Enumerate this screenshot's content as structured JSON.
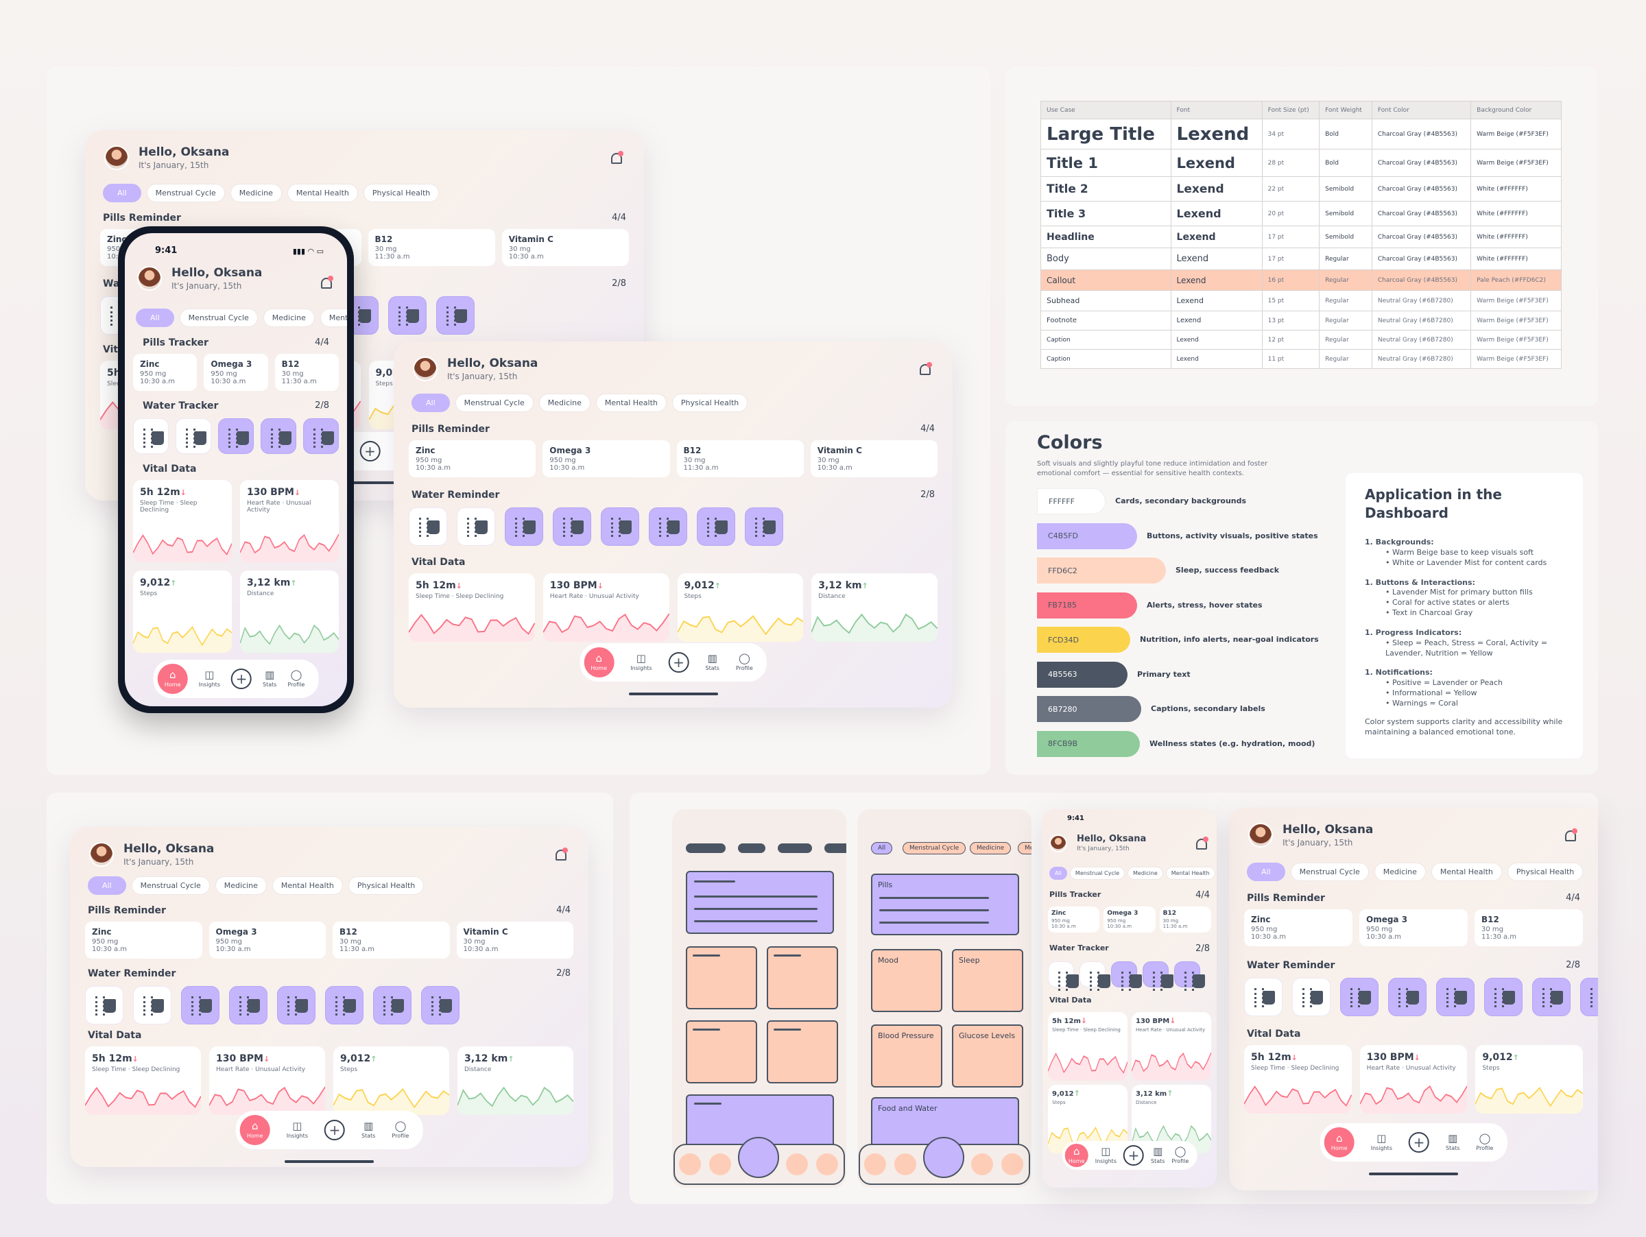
{
  "greeting": "Hello, Oksana",
  "date": "It's January, 15th",
  "chips": [
    "All",
    "Menstrual Cycle",
    "Medicine",
    "Mental Health",
    "Physical Health"
  ],
  "phone_chip_partial": "Me",
  "sections": {
    "pills": "Pills Reminder",
    "pills_tracker": "Pills Tracker",
    "pills_count": "4/4",
    "water": "Water Reminder",
    "water_tracker": "Water Tracker",
    "water_count": "2/8",
    "vital": "Vital Data"
  },
  "pills": [
    {
      "name": "Zinc",
      "dose": "950 mg",
      "time": "10:30 a.m"
    },
    {
      "name": "Omega 3",
      "dose": "950 mg",
      "time": "10:30 a.m"
    },
    {
      "name": "B12",
      "dose": "30 mg",
      "time": "11:30 a.m"
    },
    {
      "name": "Vitamin C",
      "dose": "30 mg",
      "time": "10:30 a.m"
    }
  ],
  "water": {
    "filled": 2,
    "total": 8
  },
  "vitals": [
    {
      "value": "5h 12m",
      "trend": "↓",
      "label": "Sleep Time · Sleep Declining",
      "label_a": "Sleep Time",
      "label_b": "Sleep Declining",
      "color": "#FB7185"
    },
    {
      "value": "130 BPM",
      "trend": "↓",
      "label": "Heart Rate · Unusual Activity",
      "label_a": "Heart Rate",
      "label_b": "Unusual Activity",
      "color": "#FB7185"
    },
    {
      "value": "9,012",
      "trend": "↑",
      "label": "Steps",
      "color": "#FCD34D"
    },
    {
      "value": "3,12 km",
      "trend": "↑",
      "label": "Distance",
      "color": "#8FCB9B"
    }
  ],
  "nav": [
    "Home",
    "Insights",
    "Stats",
    "Profile"
  ],
  "phone": {
    "time": "9:41",
    "status": "▮▮▮ ◠ ▭"
  },
  "typography": {
    "headers": [
      "Use Case",
      "Font",
      "Font Size (pt)",
      "Font Weight",
      "Font Color",
      "Background Color"
    ],
    "rows": [
      [
        "Large Title",
        "Lexend",
        "34 pt",
        "Bold",
        "Charcoal Gray (#4B5563)",
        "Warm Beige (#F5F3EF)"
      ],
      [
        "Title 1",
        "Lexend",
        "28 pt",
        "Bold",
        "Charcoal Gray (#4B5563)",
        "Warm Beige (#F5F3EF)"
      ],
      [
        "Title 2",
        "Lexend",
        "22 pt",
        "Semibold",
        "Charcoal Gray (#4B5563)",
        "White (#FFFFFF)"
      ],
      [
        "Title 3",
        "Lexend",
        "20 pt",
        "Semibold",
        "Charcoal Gray (#4B5563)",
        "White (#FFFFFF)"
      ],
      [
        "Headline",
        "Lexend",
        "17 pt",
        "Semibold",
        "Charcoal Gray (#4B5563)",
        "White (#FFFFFF)"
      ],
      [
        "Body",
        "Lexend",
        "17 pt",
        "Regular",
        "Charcoal Gray (#4B5563)",
        "White (#FFFFFF)"
      ],
      [
        "Callout",
        "Lexend",
        "16 pt",
        "Regular",
        "Charcoal Gray (#4B5563)",
        "Pale Peach (#FFD6C2)"
      ],
      [
        "Subhead",
        "Lexend",
        "15 pt",
        "Regular",
        "Neutral Gray (#6B7280)",
        "Warm Beige (#F5F3EF)"
      ],
      [
        "Footnote",
        "Lexend",
        "13 pt",
        "Regular",
        "Neutral Gray (#6B7280)",
        "Warm Beige (#F5F3EF)"
      ],
      [
        "Caption",
        "Lexend",
        "12 pt",
        "Regular",
        "Neutral Gray (#6B7280)",
        "Warm Beige (#F5F3EF)"
      ],
      [
        "Caption",
        "Lexend",
        "11 pt",
        "Regular",
        "Neutral Gray (#6B7280)",
        "Warm Beige (#F5F3EF)"
      ]
    ]
  },
  "colors": {
    "title": "Colors",
    "subtitle": "Soft visuals and slightly playful tone reduce intimidation and foster emotional comfort — essential for sensitive health contexts.",
    "swatches": [
      {
        "hex": "FFFFFF",
        "color": "#FFFFFF",
        "label": "Cards, secondary backgrounds"
      },
      {
        "hex": "C4B5FD",
        "color": "#C4B5FD",
        "label": "Buttons, activity visuals, positive states"
      },
      {
        "hex": "FFD6C2",
        "color": "#FFD6C2",
        "label": "Sleep, success feedback"
      },
      {
        "hex": "FB7185",
        "color": "#FB7185",
        "label": "Alerts, stress, hover states"
      },
      {
        "hex": "FCD34D",
        "color": "#FCD34D",
        "label": "Nutrition, info alerts, near-goal indicators"
      },
      {
        "hex": "4B5563",
        "color": "#4B5563",
        "label": "Primary text"
      },
      {
        "hex": "6B7280",
        "color": "#6B7280",
        "label": "Captions, secondary labels"
      },
      {
        "hex": "8FCB9B",
        "color": "#8FCB9B",
        "label": "Wellness states (e.g. hydration, mood)"
      }
    ]
  },
  "application": {
    "title": "Application in the Dashboard",
    "groups": [
      {
        "head": "1. Backgrounds:",
        "items": [
          "• Warm Beige base to keep visuals soft",
          "• White or Lavender Mist for content cards"
        ]
      },
      {
        "head": "1. Buttons & Interactions:",
        "items": [
          "• Lavender Mist for primary button fills",
          "• Coral for active states or alerts",
          "• Text in Charcoal Gray"
        ]
      },
      {
        "head": "1. Progress Indicators:",
        "items": [
          "• Sleep = Peach, Stress = Coral, Activity = Lavender, Nutrition = Yellow"
        ]
      },
      {
        "head": "1. Notifications:",
        "items": [
          "• Positive = Lavender or Peach",
          "• Informational = Yellow",
          "• Warnings = Coral"
        ]
      }
    ],
    "footer": "Color system supports clarity and accessibility while maintaining a balanced emotional tone."
  },
  "wireframe": {
    "chip_all": "All",
    "chip_menstrual": "Menstrual Cycle",
    "chip_medicine": "Medicine",
    "chip_partial": "Me",
    "pills": "Pills",
    "mood": "Mood",
    "sleep": "Sleep",
    "blood": "Blood Pressure",
    "glucose": "Glucose Levels",
    "food": "Food and Water"
  }
}
